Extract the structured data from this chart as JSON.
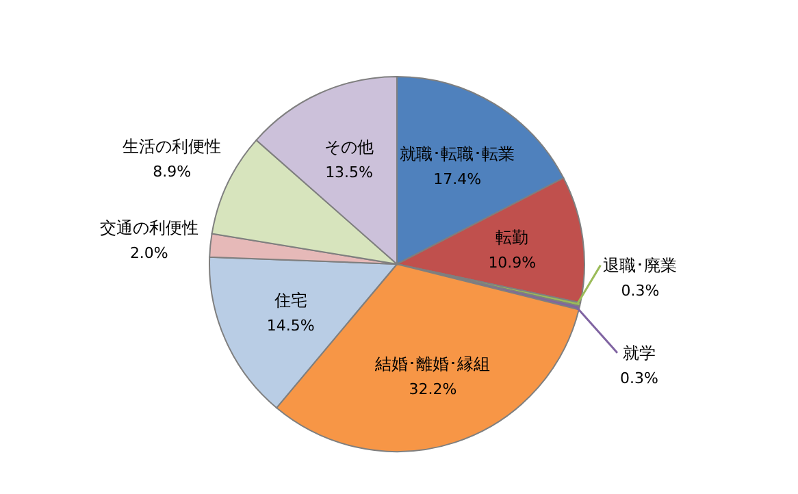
{
  "chart_data": {
    "type": "pie",
    "categories": [
      "就職･転職･転業",
      "転勤",
      "退職･廃業",
      "就学",
      "結婚･離婚･縁組",
      "住宅",
      "交通の利便性",
      "生活の利便性",
      "その他"
    ],
    "values": [
      17.4,
      10.9,
      0.3,
      0.3,
      32.2,
      14.5,
      2.0,
      8.9,
      13.5
    ],
    "value_labels": [
      "17.4%",
      "10.9%",
      "0.3%",
      "0.3%",
      "32.2%",
      "14.5%",
      "2.0%",
      "8.9%",
      "13.5%"
    ],
    "colors": [
      "#4f81bd",
      "#c0504d",
      "#9bbb59",
      "#8064a2",
      "#f79646",
      "#b9cde5",
      "#e6b9b8",
      "#d7e4bd",
      "#ccc1da"
    ]
  }
}
